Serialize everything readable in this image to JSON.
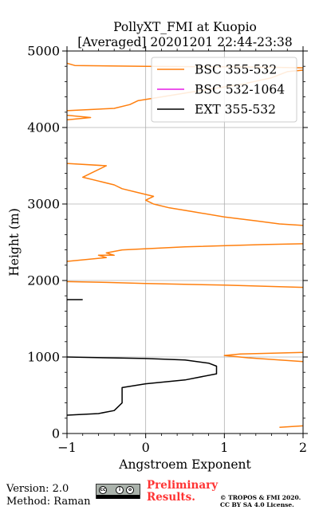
{
  "chart_data": {
    "type": "line",
    "title_line1": "PollyXT_FMI at Kuopio",
    "title_line2": "[Averaged] 20201201 22:44-23:38",
    "xlabel": "Angstroem Exponent",
    "ylabel": "Height (m)",
    "xlim": [
      -1,
      2
    ],
    "ylim": [
      0,
      5000
    ],
    "x_ticks": [
      -1,
      0,
      1,
      2
    ],
    "x_tick_labels": [
      "−1",
      "0",
      "1",
      "2"
    ],
    "y_ticks": [
      0,
      1000,
      2000,
      3000,
      4000,
      5000
    ],
    "y_tick_labels": [
      "0",
      "1000",
      "2000",
      "3000",
      "4000",
      "5000"
    ],
    "grid": true,
    "legend_position": "upper-right",
    "series": [
      {
        "name": "BSC 355-532",
        "color": "#ff7f0e",
        "segments": [
          [
            [
              1.7,
              80
            ],
            [
              2.0,
              100
            ]
          ],
          [
            [
              2.0,
              940
            ],
            [
              1.3,
              990
            ],
            [
              1.0,
              1020
            ],
            [
              1.2,
              1040
            ],
            [
              2.0,
              1060
            ]
          ],
          [
            [
              2.0,
              1910
            ],
            [
              1.0,
              1940
            ],
            [
              0.0,
              1960
            ],
            [
              -0.5,
              1975
            ],
            [
              -1.0,
              1985
            ]
          ],
          [
            [
              -1.0,
              2250
            ],
            [
              -0.5,
              2300
            ],
            [
              -0.6,
              2330
            ],
            [
              -0.4,
              2330
            ],
            [
              -0.5,
              2360
            ],
            [
              -0.3,
              2400
            ],
            [
              0.5,
              2440
            ],
            [
              1.5,
              2470
            ],
            [
              2.0,
              2480
            ]
          ],
          [
            [
              2.0,
              2720
            ],
            [
              1.7,
              2740
            ],
            [
              1.4,
              2780
            ],
            [
              1.0,
              2830
            ],
            [
              0.6,
              2900
            ],
            [
              0.3,
              2950
            ],
            [
              0.1,
              3000
            ],
            [
              0.0,
              3050
            ],
            [
              0.1,
              3100
            ],
            [
              -0.1,
              3150
            ],
            [
              -0.3,
              3200
            ],
            [
              -0.4,
              3250
            ],
            [
              -0.6,
              3300
            ],
            [
              -0.8,
              3350
            ],
            [
              -0.7,
              3400
            ],
            [
              -0.5,
              3500
            ],
            [
              -1.0,
              3530
            ]
          ],
          [
            [
              -1.0,
              4100
            ],
            [
              -0.7,
              4130
            ],
            [
              -1.0,
              4160
            ]
          ],
          [
            [
              -1.0,
              4220
            ],
            [
              -0.4,
              4250
            ],
            [
              -0.2,
              4300
            ],
            [
              -0.1,
              4350
            ],
            [
              0.2,
              4400
            ],
            [
              0.8,
              4500
            ],
            [
              1.2,
              4560
            ],
            [
              1.6,
              4650
            ],
            [
              1.8,
              4730
            ],
            [
              2.0,
              4750
            ]
          ],
          [
            [
              2.0,
              4780
            ],
            [
              1.5,
              4790
            ],
            [
              0.0,
              4800
            ],
            [
              -0.9,
              4810
            ],
            [
              -1.0,
              4840
            ]
          ]
        ]
      },
      {
        "name": "BSC 532-1064",
        "color": "#e51ce5",
        "segments": []
      },
      {
        "name": "EXT 355-532",
        "color": "#000000",
        "segments": [
          [
            [
              -1.0,
              240
            ],
            [
              -0.6,
              260
            ],
            [
              -0.4,
              300
            ],
            [
              -0.3,
              400
            ],
            [
              -0.3,
              500
            ],
            [
              -0.3,
              580
            ],
            [
              -0.3,
              600
            ],
            [
              0.0,
              650
            ],
            [
              0.5,
              700
            ],
            [
              0.9,
              780
            ],
            [
              0.9,
              880
            ],
            [
              0.8,
              920
            ],
            [
              0.5,
              960
            ],
            [
              0.0,
              980
            ],
            [
              -1.0,
              1000
            ]
          ],
          [
            [
              -1.0,
              1750
            ],
            [
              -0.8,
              1750
            ]
          ]
        ]
      }
    ]
  },
  "footer": {
    "version": "Version: 2.0",
    "method": "Method: Raman",
    "preliminary_line1": "Preliminary",
    "preliminary_line2": "Results.",
    "copyright_line1": "© TROPOS & FMI 2020.",
    "copyright_line2": "CC BY SA 4.0 License.",
    "license_badge": "CC BY SA"
  }
}
